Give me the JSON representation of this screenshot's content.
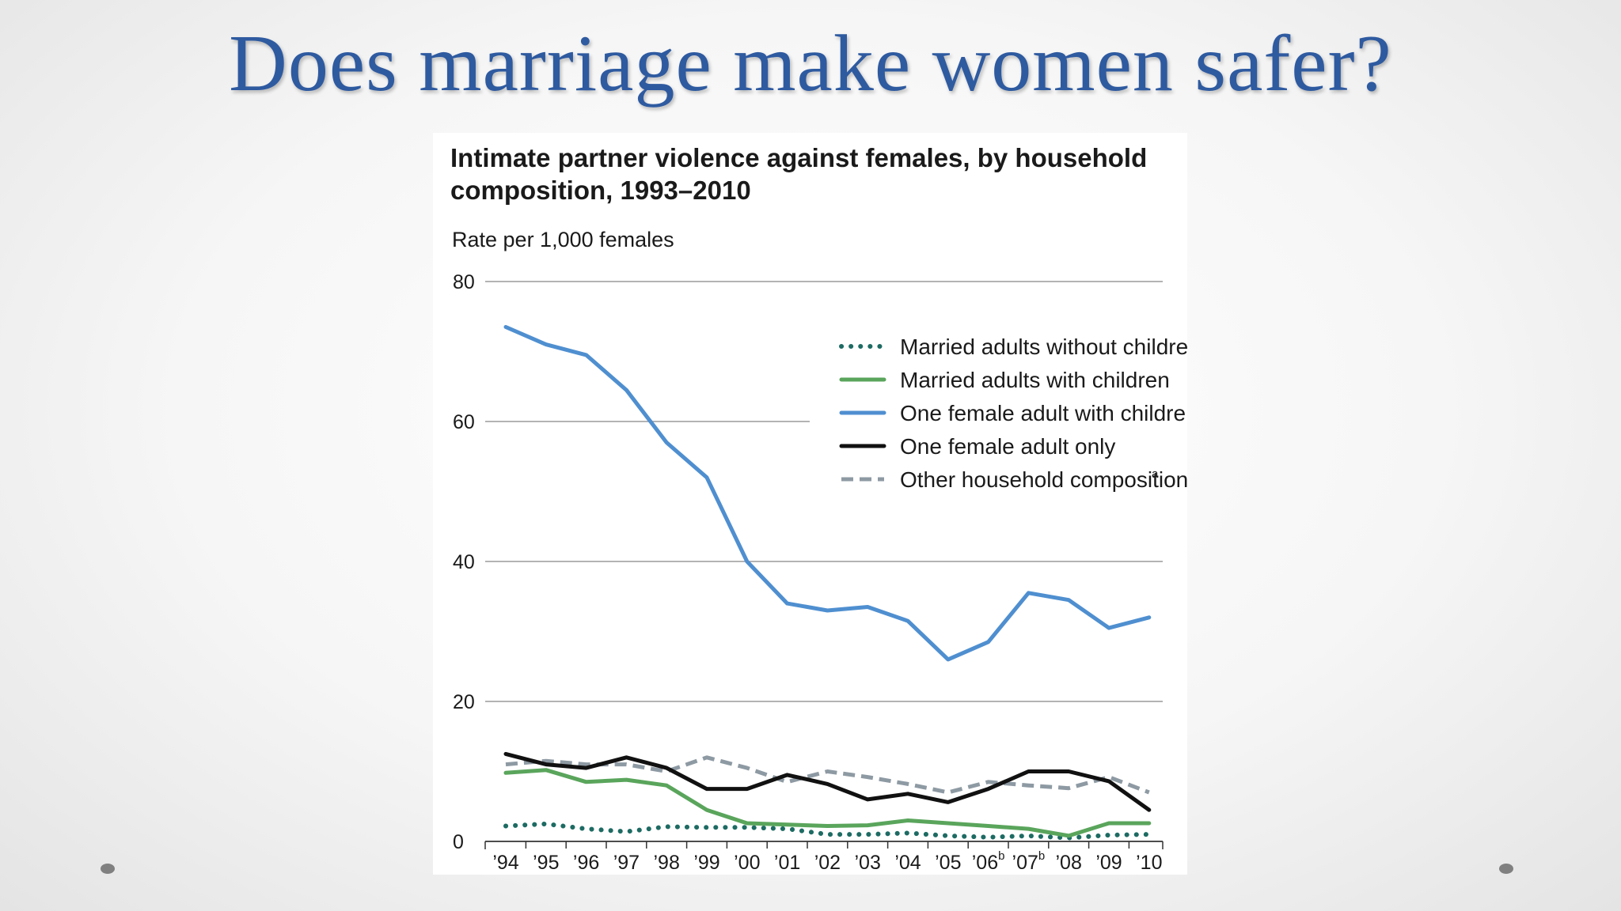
{
  "slide": {
    "title": "Does marriage make women safer?"
  },
  "colors": {
    "title": "#2e5aa0",
    "married_without_children": "#1d6b63",
    "married_with_children": "#5aa55c",
    "one_female_with_children": "#4f8fd0",
    "one_female_only": "#111111",
    "other_household": "#8e9aa3"
  },
  "chart_data": {
    "type": "line",
    "title_lines": [
      "Intimate partner violence against females, by household",
      "composition, 1993–2010"
    ],
    "ylabel": "Rate per 1,000 females",
    "xlabel": "",
    "ylim": [
      0,
      80
    ],
    "yticks": [
      0,
      20,
      40,
      60,
      80
    ],
    "grid": true,
    "legend_position": "top-right",
    "categories": [
      "’94",
      "’95",
      "’96",
      "’97",
      "’98",
      "’99",
      "’00",
      "’01",
      "’02",
      "’03",
      "’04",
      "’05",
      "’06",
      "’07",
      "’08",
      "’09",
      "’10"
    ],
    "category_superscripts": [
      "",
      "",
      "",
      "",
      "",
      "",
      "",
      "",
      "",
      "",
      "",
      "",
      "b",
      "b",
      "",
      "",
      ""
    ],
    "series": [
      {
        "name": "Married adults without children",
        "style": "dotted",
        "color_key": "married_without_children",
        "values": [
          2.2,
          2.5,
          1.8,
          1.4,
          2.1,
          2.0,
          2.0,
          1.8,
          1.0,
          1.0,
          1.2,
          0.8,
          0.6,
          0.8,
          0.5,
          0.9,
          1.0
        ]
      },
      {
        "name": "Married adults with children",
        "style": "solid",
        "color_key": "married_with_children",
        "values": [
          9.8,
          10.2,
          8.5,
          8.8,
          8.0,
          4.5,
          2.6,
          2.4,
          2.2,
          2.3,
          3.0,
          2.6,
          2.2,
          1.8,
          0.8,
          2.6,
          2.6
        ]
      },
      {
        "name": "One female adult with children",
        "style": "solid",
        "color_key": "one_female_with_children",
        "values": [
          73.5,
          71,
          69.5,
          64.5,
          57,
          52,
          40,
          34,
          33,
          33.5,
          31.5,
          26,
          28.5,
          35.5,
          34.5,
          30.5,
          32
        ]
      },
      {
        "name": "One female adult only",
        "style": "solid",
        "color_key": "one_female_only",
        "values": [
          12.5,
          11,
          10.5,
          12,
          10.5,
          7.5,
          7.5,
          9.5,
          8.2,
          6.0,
          6.8,
          5.6,
          7.5,
          10.0,
          10.0,
          8.6,
          4.5
        ]
      },
      {
        "name": "Other household composition",
        "name_superscript": "a",
        "style": "dashed",
        "color_key": "other_household",
        "values": [
          11.0,
          11.5,
          11.0,
          11.0,
          10.0,
          12.0,
          10.5,
          8.5,
          10.0,
          9.2,
          8.2,
          7.0,
          8.5,
          8.0,
          7.6,
          9.2,
          7.0
        ]
      }
    ]
  }
}
